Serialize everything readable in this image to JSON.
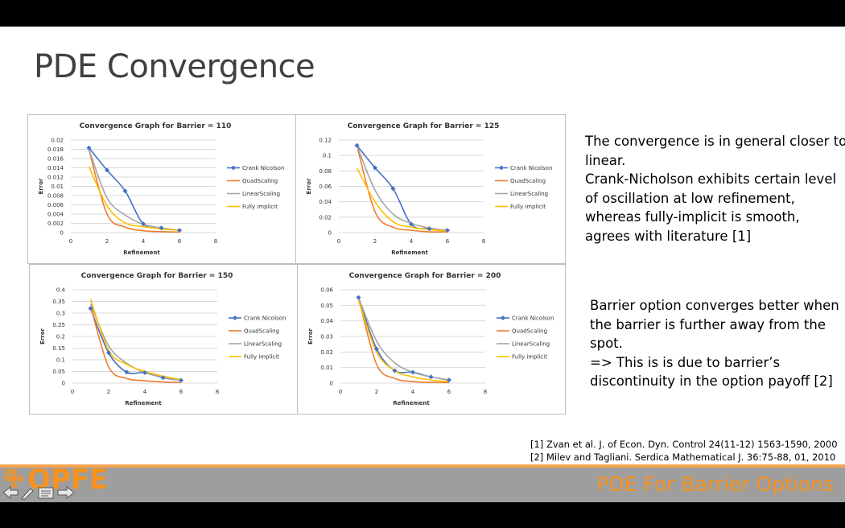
{
  "slide": {
    "title": "PDE Convergence",
    "text_block_1": [
      "The convergence is in general closer to",
      "linear.",
      "Crank-Nicholson exhibits certain level",
      "of oscillation at low refinement,",
      "whereas fully-implicit is smooth,",
      "agrees with literature [1]"
    ],
    "text_block_2": [
      "Barrier option converges better when",
      "the barrier is further away from the",
      "spot.",
      "=> This is is due to barrier’s",
      "discontinuity in the option payoff [2]"
    ],
    "references": [
      "[1] Zvan et al. J. of Econ. Dyn. Control 24(11-12) 1563-1590, 2000",
      "[2] Milev and Tagliani. Serdica Mathematical J. 36:75-88, 01, 2010"
    ],
    "footer_title": "PDE For Barrier Options",
    "logo_text": "OPFE"
  },
  "colors": {
    "crank_nicolson": "#4472c4",
    "quad_scaling": "#ed7d31",
    "linear_scaling": "#a5a5a5",
    "fully_implicit": "#ffc000",
    "footer_bg": "#9e9e9e",
    "footer_accent": "#f7921e"
  },
  "chart_data": [
    {
      "type": "line",
      "title": "Convergence Graph for Barrier = 110",
      "xlabel": "Refinement",
      "ylabel": "Error",
      "xlim": [
        0,
        8
      ],
      "ylim": [
        0,
        0.02
      ],
      "xticks": [
        "0",
        "2",
        "4",
        "6",
        "8"
      ],
      "yticks": [
        "0",
        "0.002",
        "0.004",
        "0.006",
        "0.008",
        "0.01",
        "0.012",
        "0.014",
        "0.016",
        "0.018",
        "0.02"
      ],
      "x": [
        1,
        2,
        3,
        4,
        5,
        6
      ],
      "series": [
        {
          "name": "Crank Nicolson",
          "values": [
            0.0183,
            0.0135,
            0.009,
            0.0019,
            0.001,
            0.0005
          ]
        },
        {
          "name": "QuadScaling",
          "values": [
            0.018,
            0.004,
            0.0012,
            0.0004,
            0.0002,
            0.0001
          ]
        },
        {
          "name": "LinearScaling",
          "values": [
            0.018,
            0.0075,
            0.0038,
            0.0018,
            0.001,
            0.0005
          ]
        },
        {
          "name": "Fully implicit",
          "values": [
            0.0143,
            0.0058,
            0.0021,
            0.0013,
            0.0008,
            0.0005
          ]
        }
      ],
      "grid": true,
      "legend": "right"
    },
    {
      "type": "line",
      "title": "Convergence Graph for Barrier = 125",
      "xlabel": "Refinement",
      "ylabel": "Error",
      "xlim": [
        0,
        8
      ],
      "ylim": [
        0,
        0.12
      ],
      "xticks": [
        "0",
        "2",
        "4",
        "6",
        "8"
      ],
      "yticks": [
        "0",
        "0.02",
        "0.04",
        "0.06",
        "0.08",
        "0.1",
        "0.12"
      ],
      "x": [
        1,
        2,
        3,
        4,
        5,
        6
      ],
      "series": [
        {
          "name": "Crank Nicolson",
          "values": [
            0.113,
            0.084,
            0.057,
            0.011,
            0.005,
            0.003
          ]
        },
        {
          "name": "QuadScaling",
          "values": [
            0.113,
            0.027,
            0.007,
            0.003,
            0.001,
            0.001
          ]
        },
        {
          "name": "LinearScaling",
          "values": [
            0.113,
            0.055,
            0.024,
            0.012,
            0.006,
            0.003
          ]
        },
        {
          "name": "Fully implicit",
          "values": [
            0.084,
            0.04,
            0.014,
            0.007,
            0.004,
            0.002
          ]
        }
      ],
      "grid": true,
      "legend": "right"
    },
    {
      "type": "line",
      "title": "Convergence Graph for Barrier = 150",
      "xlabel": "Refinement",
      "ylabel": "Error",
      "xlim": [
        0,
        8
      ],
      "ylim": [
        0,
        0.4
      ],
      "xticks": [
        "0",
        "2",
        "4",
        "6",
        "8"
      ],
      "yticks": [
        "0",
        "0.05",
        "0.1",
        "0.15",
        "0.2",
        "0.25",
        "0.3",
        "0.35",
        "0.4"
      ],
      "x": [
        1,
        2,
        3,
        4,
        5,
        6
      ],
      "series": [
        {
          "name": "Crank Nicolson",
          "values": [
            0.32,
            0.13,
            0.047,
            0.045,
            0.023,
            0.012
          ]
        },
        {
          "name": "QuadScaling",
          "values": [
            0.33,
            0.07,
            0.02,
            0.01,
            0.005,
            0.003
          ]
        },
        {
          "name": "LinearScaling",
          "values": [
            0.34,
            0.16,
            0.085,
            0.045,
            0.025,
            0.012
          ]
        },
        {
          "name": "Fully implicit",
          "values": [
            0.36,
            0.14,
            0.08,
            0.05,
            0.03,
            0.015
          ]
        }
      ],
      "grid": true,
      "legend": "right"
    },
    {
      "type": "line",
      "title": "Convergence Graph for Barrier = 200",
      "xlabel": "Refinement",
      "ylabel": "Error",
      "xlim": [
        0,
        8
      ],
      "ylim": [
        0,
        0.06
      ],
      "xticks": [
        "0",
        "2",
        "4",
        "6",
        "8"
      ],
      "yticks": [
        "0",
        "0.01",
        "0.02",
        "0.03",
        "0.04",
        "0.05",
        "0.06"
      ],
      "x": [
        1,
        2,
        3,
        4,
        5,
        6
      ],
      "series": [
        {
          "name": "Crank Nicolson",
          "values": [
            0.055,
            0.022,
            0.008,
            0.007,
            0.004,
            0.002
          ]
        },
        {
          "name": "QuadScaling",
          "values": [
            0.055,
            0.012,
            0.003,
            0.001,
            0.0005,
            0.0003
          ]
        },
        {
          "name": "LinearScaling",
          "values": [
            0.055,
            0.027,
            0.013,
            0.007,
            0.004,
            0.002
          ]
        },
        {
          "name": "Fully implicit",
          "values": [
            0.053,
            0.02,
            0.008,
            0.004,
            0.002,
            0.001
          ]
        }
      ],
      "grid": true,
      "legend": "right"
    }
  ]
}
